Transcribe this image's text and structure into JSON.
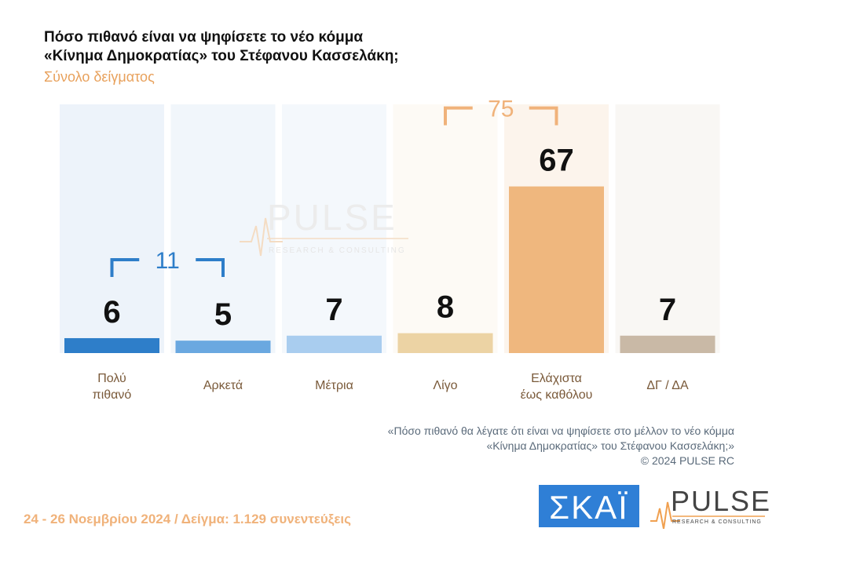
{
  "title_line1": "Πόσο πιθανό είναι να ψηφίσετε το νέο κόμμα",
  "title_line2": "«Κίνημα Δημοκρατίας» του Στέφανου Κασσελάκη;",
  "subtitle": "Σύνολο δείγματος",
  "watermark": {
    "word": "PULSE",
    "tagline": "RESEARCH & CONSULTING"
  },
  "chart_data": {
    "type": "bar",
    "categories": [
      "Πολύ πιθανό",
      "Αρκετά",
      "Μέτρια",
      "Λίγο",
      "Ελάχιστα έως καθόλου",
      "ΔΓ / ΔΑ"
    ],
    "category_lines": [
      [
        "Πολύ",
        "πιθανό"
      ],
      [
        "Αρκετά"
      ],
      [
        "Μέτρια"
      ],
      [
        "Λίγο"
      ],
      [
        "Ελάχιστα",
        "έως καθόλου"
      ],
      [
        "ΔΓ / ΔΑ"
      ]
    ],
    "values": [
      6,
      5,
      7,
      8,
      67,
      7
    ],
    "ylim": [
      0,
      100
    ],
    "bar_colors": [
      "#2e7ec9",
      "#6aa8e0",
      "#a9cdef",
      "#ecd3a4",
      "#efb77e",
      "#c9b9a6"
    ],
    "column_bg_colors": [
      "#edf3fa",
      "#f1f6fb",
      "#f4f8fc",
      "#fdfaf5",
      "#fcf4ec",
      "#f9f7f4"
    ],
    "groups": [
      {
        "label": "11",
        "from": 0,
        "to": 1,
        "color": "#2e7ec9"
      },
      {
        "label": "75",
        "from": 3,
        "to": 4,
        "color": "#f0b27a"
      }
    ]
  },
  "footnote_line1": "«Πόσο πιθανό θα λέγατε ότι είναι να ψηφίσετε στο μέλλον το νέο κόμμα",
  "footnote_line2": "«Κίνημα Δημοκρατίας» του Στέφανου Κασσελάκη;»",
  "copyright": "©  2024  PULSE RC",
  "footer": "24 - 26 Νοεμβρίου 2024  /  Δείγμα:  1.129 συνεντεύξεις",
  "logos": {
    "skai": "ΣΚΑΪ",
    "pulse": "PULSE",
    "pulse_tag": "RESEARCH & CONSULTING"
  }
}
